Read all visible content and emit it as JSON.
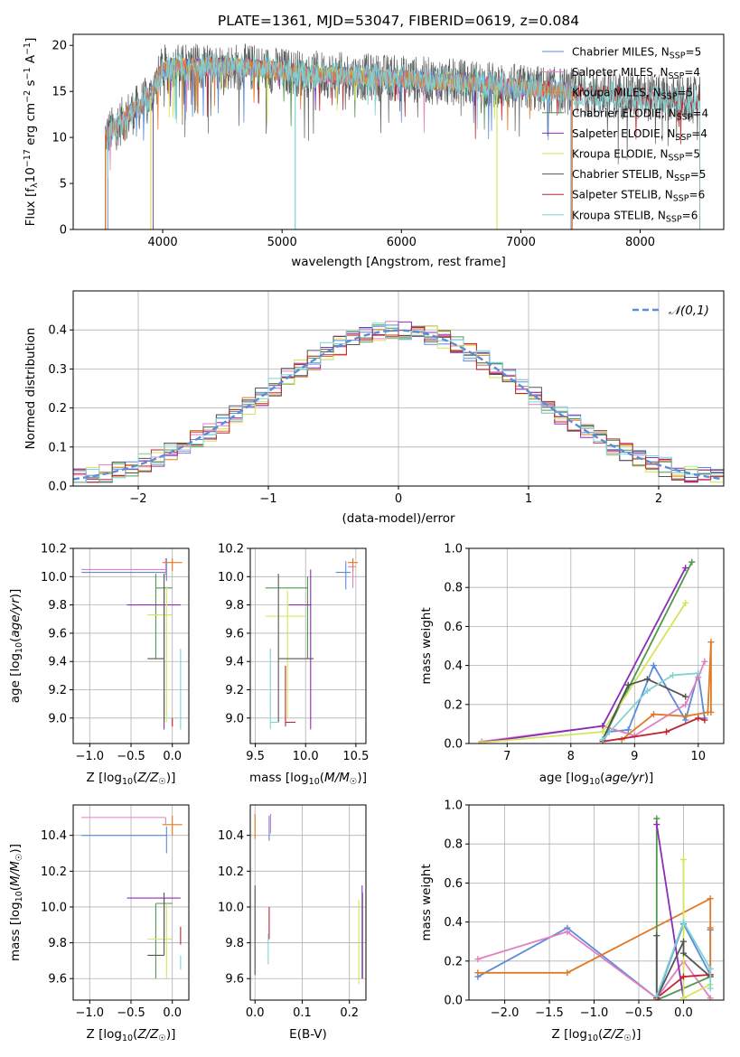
{
  "colors": {
    "series": [
      "#5b8bd9",
      "#e37fc0",
      "#e07a26",
      "#4d9a4d",
      "#8a2db8",
      "#d2e659",
      "#555555",
      "#c0242e",
      "#7fd3d3"
    ],
    "normal": "#5b8bd9",
    "grid": "#b0b0b0"
  },
  "chart_data": [
    {
      "id": "spectrum",
      "type": "line",
      "title": "PLATE=1361, MJD=53047, FIBERID=0619, z=0.084",
      "xlabel": "wavelength [Angstrom, rest frame]",
      "ylabel": "Flux [f_λ 10^-17 erg cm^-2 s^-1 A^-1]",
      "xlim": [
        3250,
        8700
      ],
      "ylim": [
        0,
        21.2
      ],
      "xticks": [
        4000,
        5000,
        6000,
        7000,
        8000
      ],
      "yticks": [
        0,
        5,
        10,
        15,
        20
      ],
      "grid": false,
      "legend_position": "upper right",
      "continuum": {
        "x": [
          3500,
          3600,
          3700,
          3800,
          3900,
          4000,
          4100,
          4200,
          4400,
          4600,
          4800,
          5000,
          5200,
          5400,
          5600,
          5800,
          6000,
          6200,
          6400,
          6600,
          6800,
          7000,
          7200,
          7400,
          7600,
          7800,
          8000,
          8200,
          8400
        ],
        "y": [
          10.2,
          11.0,
          12.4,
          13.3,
          14.5,
          17.5,
          17.7,
          17.6,
          17.7,
          17.7,
          17.5,
          17.2,
          16.9,
          16.8,
          16.6,
          16.5,
          16.4,
          16.2,
          16.0,
          15.9,
          15.6,
          15.4,
          15.2,
          15.0,
          14.8,
          14.6,
          14.4,
          14.2,
          14.0
        ]
      },
      "series": [
        {
          "name": "Chabrier MILES, N_SSP=5",
          "x_range": [
            3540,
            7420
          ]
        },
        {
          "name": "Salpeter MILES, N_SSP=4",
          "x_range": [
            3540,
            7420
          ]
        },
        {
          "name": "Kroupa MILES, N_SSP=5",
          "x_range": [
            3520,
            7430
          ]
        },
        {
          "name": "Chabrier ELODIE, N_SSP=4",
          "x_range": [
            3920,
            6800
          ]
        },
        {
          "name": "Salpeter ELODIE, N_SSP=4",
          "x_range": [
            3920,
            6800
          ]
        },
        {
          "name": "Kroupa ELODIE, N_SSP=5",
          "x_range": [
            3900,
            6800
          ]
        },
        {
          "name": "Chabrier STELIB, N_SSP=5",
          "x_range": [
            3520,
            8500
          ]
        },
        {
          "name": "Salpeter STELIB, N_SSP=6",
          "x_range": [
            3520,
            8500
          ]
        },
        {
          "name": "Kroupa STELIB, N_SSP=6",
          "x_range": [
            3520,
            8500
          ]
        }
      ],
      "drops": [
        3520,
        3900,
        5110,
        6800,
        7430
      ]
    },
    {
      "id": "residuals",
      "type": "line",
      "xlabel": "(data-model)/error",
      "ylabel": "Normed distribution",
      "xlim": [
        -2.5,
        2.5
      ],
      "ylim": [
        0,
        0.5
      ],
      "xticks": [
        -2,
        -1,
        0,
        1,
        2
      ],
      "yticks": [
        0.0,
        0.1,
        0.2,
        0.3,
        0.4
      ],
      "grid": true,
      "legend": [
        "𝒩(0,1)"
      ],
      "legend_position": "upper right",
      "histogram_bins": 50,
      "histogram_series_count": 9
    },
    {
      "id": "age_vs_Z",
      "type": "scatter",
      "xlabel": "Z [log10(Z/Z☉)]",
      "ylabel": "age [log10(age/yr)]",
      "xlim": [
        -1.2,
        0.2
      ],
      "ylim": [
        8.82,
        10.2
      ],
      "xticks": [
        -1.0,
        -0.5,
        0.0
      ],
      "yticks": [
        9.0,
        9.2,
        9.4,
        9.6,
        9.8,
        10.0,
        10.2
      ],
      "grid": true,
      "points": [
        {
          "x": -0.07,
          "y": 10.03,
          "xerr": [
            1.03,
            0.0
          ],
          "yerr": [
            0.06,
            0.1
          ]
        },
        {
          "x": -0.08,
          "y": 10.05,
          "xerr": [
            1.02,
            0.0
          ],
          "yerr": [
            0.04,
            0.08
          ]
        },
        {
          "x": 0.0,
          "y": 10.1,
          "xerr": [
            0.12,
            0.12
          ],
          "yerr": [
            0.06,
            0.03
          ]
        },
        {
          "x": -0.2,
          "y": 9.92,
          "xerr": [
            0.0,
            0.2
          ],
          "yerr": [
            0.5,
            0.1
          ]
        },
        {
          "x": -0.1,
          "y": 9.8,
          "xerr": [
            0.45,
            0.2
          ],
          "yerr": [
            0.88,
            0.13
          ]
        },
        {
          "x": -0.07,
          "y": 9.73,
          "xerr": [
            0.23,
            0.07
          ],
          "yerr": [
            0.76,
            0.2
          ]
        },
        {
          "x": -0.1,
          "y": 9.42,
          "xerr": [
            0.2,
            0.0
          ],
          "yerr": [
            0.45,
            0.6
          ]
        },
        {
          "x": 0.0,
          "y": 8.97,
          "xerr": [
            0.0,
            0.0
          ],
          "yerr": [
            0.03,
            0.03
          ]
        },
        {
          "x": 0.1,
          "y": 8.97,
          "xerr": [
            0.0,
            0.0
          ],
          "yerr": [
            0.05,
            0.52
          ]
        }
      ]
    },
    {
      "id": "age_vs_mass",
      "type": "scatter",
      "xlabel": "mass [log10(M/M☉)]",
      "xlim": [
        9.45,
        10.6
      ],
      "ylim": [
        8.82,
        10.2
      ],
      "xticks": [
        9.5,
        10.0,
        10.5
      ],
      "yticks": [
        9.0,
        9.2,
        9.4,
        9.6,
        9.8,
        10.0,
        10.2
      ],
      "grid": true,
      "points": [
        {
          "x": 10.4,
          "y": 10.03,
          "xerr": [
            0.1,
            0.05
          ],
          "yerr": [
            0.12,
            0.08
          ]
        },
        {
          "x": 10.47,
          "y": 10.07,
          "xerr": [
            0.05,
            0.03
          ],
          "yerr": [
            0.15,
            0.06
          ]
        },
        {
          "x": 10.47,
          "y": 10.1,
          "xerr": [
            0.05,
            0.05
          ],
          "yerr": [
            0.06,
            0.03
          ]
        },
        {
          "x": 10.02,
          "y": 9.92,
          "xerr": [
            0.42,
            0.0
          ],
          "yerr": [
            0.5,
            0.08
          ]
        },
        {
          "x": 10.05,
          "y": 9.8,
          "xerr": [
            0.22,
            0.0
          ],
          "yerr": [
            0.88,
            0.25
          ]
        },
        {
          "x": 9.82,
          "y": 9.72,
          "xerr": [
            0.22,
            0.2
          ],
          "yerr": [
            0.72,
            0.18
          ]
        },
        {
          "x": 9.73,
          "y": 9.42,
          "xerr": [
            0.0,
            0.35
          ],
          "yerr": [
            0.45,
            0.6
          ]
        },
        {
          "x": 9.8,
          "y": 8.97,
          "xerr": [
            0.0,
            0.1
          ],
          "yerr": [
            0.03,
            0.4
          ]
        },
        {
          "x": 9.65,
          "y": 8.97,
          "xerr": [
            0.0,
            0.08
          ],
          "yerr": [
            0.05,
            0.52
          ]
        }
      ]
    },
    {
      "id": "weight_vs_age",
      "type": "line",
      "xlabel": "age [log10(age/yr)]",
      "ylabel": "mass weight",
      "xlim": [
        6.4,
        10.4
      ],
      "ylim": [
        0,
        1.0
      ],
      "xticks": [
        7,
        8,
        9,
        10
      ],
      "yticks": [
        0.0,
        0.2,
        0.4,
        0.6,
        0.8,
        1.0
      ],
      "grid": true,
      "series": [
        {
          "x": [
            8.5,
            8.6,
            8.9,
            9.3,
            9.8,
            10.0,
            10.1
          ],
          "y": [
            0.01,
            0.06,
            0.07,
            0.4,
            0.12,
            0.36,
            0.13
          ]
        },
        {
          "x": [
            6.6,
            8.5,
            9.0,
            9.8,
            10.0,
            10.1
          ],
          "y": [
            0.01,
            0.09,
            0.04,
            0.2,
            0.34,
            0.42
          ]
        },
        {
          "x": [
            8.8,
            9.3,
            9.8,
            10.15,
            10.2,
            10.2
          ],
          "y": [
            0.02,
            0.15,
            0.14,
            0.16,
            0.52,
            0.16
          ]
        },
        {
          "x": [
            8.5,
            9.9
          ],
          "y": [
            0.02,
            0.93
          ]
        },
        {
          "x": [
            6.6,
            8.5,
            9.8
          ],
          "y": [
            0.005,
            0.09,
            0.9
          ]
        },
        {
          "x": [
            6.6,
            8.5,
            9.8
          ],
          "y": [
            0.005,
            0.06,
            0.72
          ]
        },
        {
          "x": [
            8.5,
            8.9,
            9.2,
            9.8
          ],
          "y": [
            0.02,
            0.3,
            0.33,
            0.24
          ]
        },
        {
          "x": [
            8.5,
            9.5,
            10.0,
            10.1
          ],
          "y": [
            0.01,
            0.06,
            0.13,
            0.12
          ]
        },
        {
          "x": [
            8.5,
            9.2,
            9.6,
            10.0
          ],
          "y": [
            0.02,
            0.27,
            0.35,
            0.36
          ]
        }
      ]
    },
    {
      "id": "mass_vs_Z",
      "type": "scatter",
      "xlabel": "Z [log10(Z/Z☉)]",
      "ylabel": "mass [log10(M/M☉)]",
      "xlim": [
        -1.2,
        0.2
      ],
      "ylim": [
        9.48,
        10.57
      ],
      "xticks": [
        -1.0,
        -0.5,
        0.0
      ],
      "yticks": [
        9.6,
        9.8,
        10.0,
        10.2,
        10.4
      ],
      "grid": true,
      "points": [
        {
          "x": -0.07,
          "y": 10.4,
          "xerr": [
            1.03,
            0.0
          ],
          "yerr": [
            0.1,
            0.05
          ]
        },
        {
          "x": -0.08,
          "y": 10.5,
          "xerr": [
            1.02,
            0.0
          ],
          "yerr": [
            0.04,
            0.0
          ]
        },
        {
          "x": 0.0,
          "y": 10.46,
          "xerr": [
            0.12,
            0.12
          ],
          "yerr": [
            0.06,
            0.05
          ]
        },
        {
          "x": -0.2,
          "y": 10.02,
          "xerr": [
            0.0,
            0.2
          ],
          "yerr": [
            0.42,
            0.0
          ]
        },
        {
          "x": -0.1,
          "y": 10.05,
          "xerr": [
            0.45,
            0.2
          ],
          "yerr": [
            0.22,
            0.0
          ]
        },
        {
          "x": -0.07,
          "y": 9.82,
          "xerr": [
            0.23,
            0.07
          ],
          "yerr": [
            0.22,
            0.2
          ]
        },
        {
          "x": -0.1,
          "y": 9.73,
          "xerr": [
            0.2,
            0.0
          ],
          "yerr": [
            0.0,
            0.35
          ]
        },
        {
          "x": 0.1,
          "y": 9.79,
          "xerr": [
            0.0,
            0.0
          ],
          "yerr": [
            0.0,
            0.1
          ]
        },
        {
          "x": 0.1,
          "y": 9.65,
          "xerr": [
            0.0,
            0.0
          ],
          "yerr": [
            0.0,
            0.08
          ]
        }
      ]
    },
    {
      "id": "mass_vs_ebv",
      "type": "scatter",
      "xlabel": "E(B-V)",
      "xlim": [
        -0.01,
        0.235
      ],
      "ylim": [
        9.48,
        10.57
      ],
      "xticks": [
        0.0,
        0.1,
        0.2
      ],
      "yticks": [
        9.6,
        9.8,
        10.0,
        10.2,
        10.4
      ],
      "grid": true,
      "points": [
        {
          "x": 0.03,
          "y": 10.45,
          "yerr": [
            0.08,
            0.06
          ]
        },
        {
          "x": 0.033,
          "y": 10.47,
          "yerr": [
            0.06,
            0.05
          ]
        },
        {
          "x": 0.0,
          "y": 10.46,
          "yerr": [
            0.08,
            0.06
          ]
        },
        {
          "x": 0.228,
          "y": 10.0,
          "yerr": [
            0.4,
            0.08
          ]
        },
        {
          "x": 0.227,
          "y": 10.0,
          "yerr": [
            0.4,
            0.12
          ]
        },
        {
          "x": 0.22,
          "y": 9.82,
          "yerr": [
            0.25,
            0.22
          ]
        },
        {
          "x": 0.0,
          "y": 9.9,
          "yerr": [
            0.28,
            0.22
          ]
        },
        {
          "x": 0.03,
          "y": 9.9,
          "yerr": [
            0.08,
            0.1
          ]
        },
        {
          "x": 0.028,
          "y": 9.8,
          "yerr": [
            0.12,
            0.05
          ]
        }
      ]
    },
    {
      "id": "weight_vs_Z",
      "type": "line",
      "xlabel": "Z [log10(Z/Z☉)]",
      "ylabel": "mass weight",
      "xlim": [
        -2.4,
        0.45
      ],
      "ylim": [
        0,
        1.0
      ],
      "xticks": [
        -2.0,
        -1.5,
        -1.0,
        -0.5,
        0.0
      ],
      "yticks": [
        0.0,
        0.2,
        0.4,
        0.6,
        0.8,
        1.0
      ],
      "grid": true,
      "series": [
        {
          "x": [
            -2.3,
            -1.3,
            -0.3,
            0.0,
            0.3,
            0.3
          ],
          "y": [
            0.12,
            0.37,
            0.01,
            0.39,
            0.13,
            0.36
          ]
        },
        {
          "x": [
            -2.3,
            -1.3,
            -0.3,
            0.0,
            0.3
          ],
          "y": [
            0.21,
            0.35,
            0.01,
            0.2,
            0.01
          ]
        },
        {
          "x": [
            -2.3,
            -1.3,
            0.3,
            0.3,
            0.3,
            0.3
          ],
          "y": [
            0.14,
            0.14,
            0.52,
            0.16,
            0.37,
            0.13
          ]
        },
        {
          "x": [
            -0.3,
            -0.3,
            0.3
          ],
          "y": [
            0.93,
            0.0,
            0.12
          ]
        },
        {
          "x": [
            -0.3,
            0.0
          ],
          "y": [
            0.9,
            0.01
          ]
        },
        {
          "x": [
            0.0,
            0.0,
            0.3
          ],
          "y": [
            0.72,
            0.01,
            0.08
          ]
        },
        {
          "x": [
            -0.3,
            -0.3,
            0.0,
            0.0,
            0.3
          ],
          "y": [
            0.33,
            0.01,
            0.3,
            0.24,
            0.12
          ]
        },
        {
          "x": [
            -0.3,
            0.0,
            0.3
          ],
          "y": [
            0.01,
            0.12,
            0.13
          ]
        },
        {
          "x": [
            -0.3,
            0.0,
            0.3,
            0.3
          ],
          "y": [
            0.02,
            0.4,
            0.16,
            0.06
          ]
        }
      ]
    }
  ]
}
